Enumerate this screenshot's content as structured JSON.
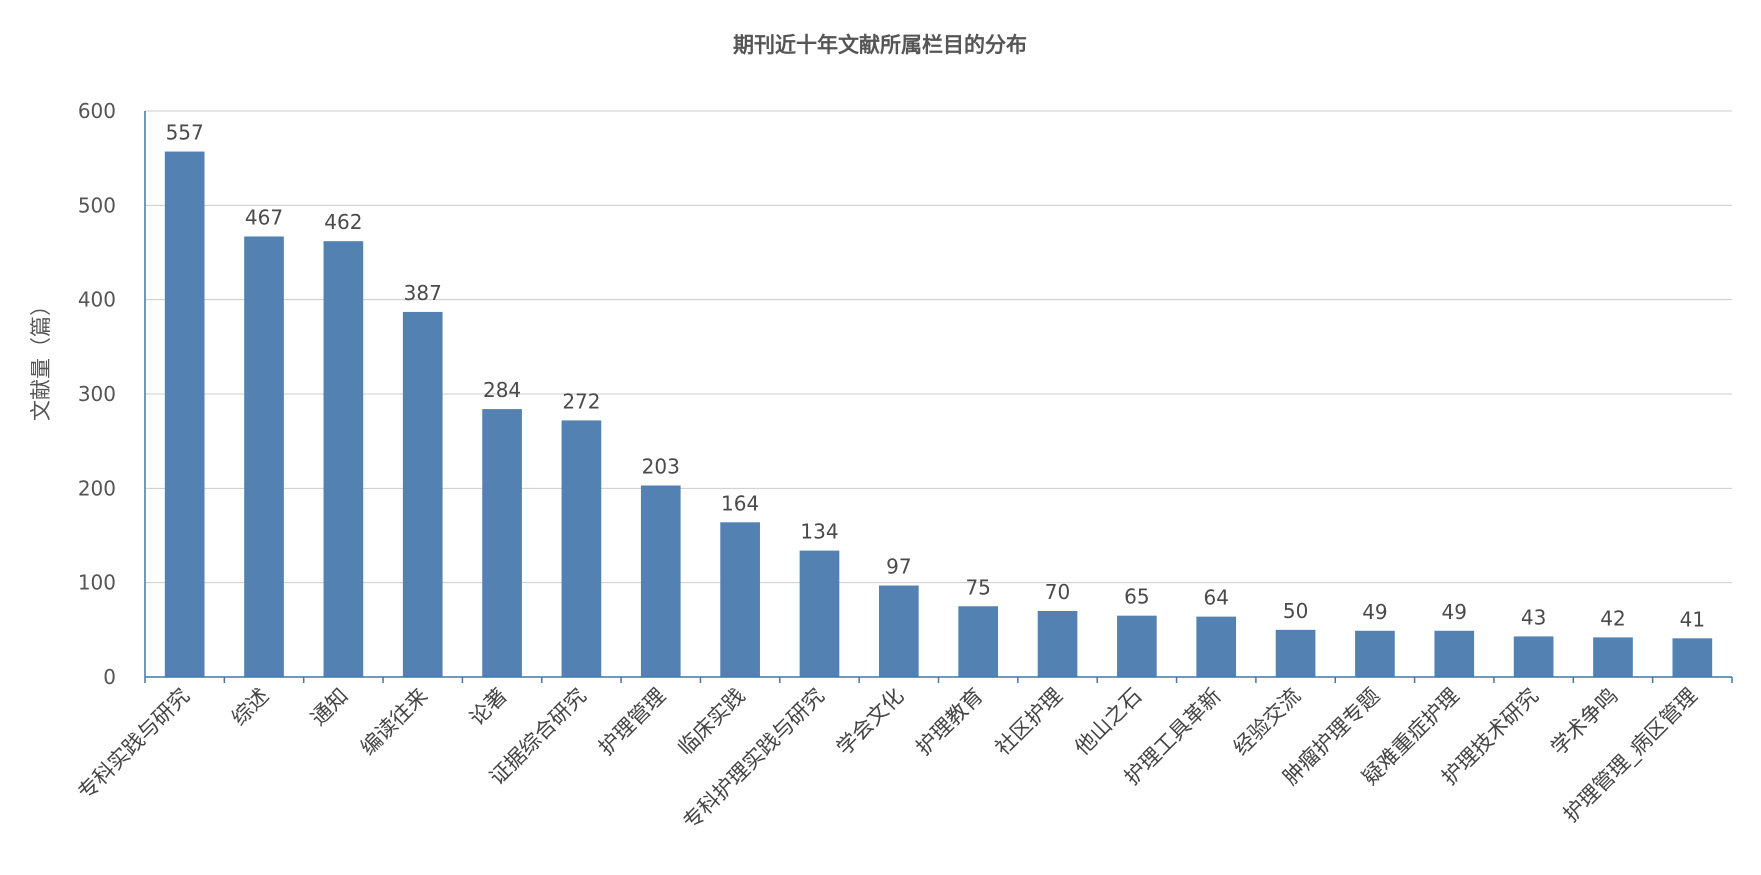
{
  "chart_data": {
    "type": "bar",
    "title": "期刊近十年文献所属栏目的分布",
    "xlabel": "",
    "ylabel": "文献量（篇）",
    "ylim": [
      0,
      600
    ],
    "yticks": [
      0,
      100,
      200,
      300,
      400,
      500,
      600
    ],
    "grid": true,
    "legend": "none",
    "bar_color": "#5381b2",
    "axis_color": "#3f79ad",
    "categories": [
      "专科实践与研究",
      "综述",
      "通知",
      "编读往来",
      "论著",
      "证据综合研究",
      "护理管理",
      "临床实践",
      "专科护理实践与研究",
      "学会文化",
      "护理教育",
      "社区护理",
      "他山之石",
      "护理工具革新",
      "经验交流",
      "肿瘤护理专题",
      "疑难重症护理",
      "护理技术研究",
      "学术争鸣",
      "护理管理_病区管理"
    ],
    "values": [
      557,
      467,
      462,
      387,
      284,
      272,
      203,
      164,
      134,
      97,
      75,
      70,
      65,
      64,
      50,
      49,
      49,
      43,
      42,
      41
    ]
  }
}
